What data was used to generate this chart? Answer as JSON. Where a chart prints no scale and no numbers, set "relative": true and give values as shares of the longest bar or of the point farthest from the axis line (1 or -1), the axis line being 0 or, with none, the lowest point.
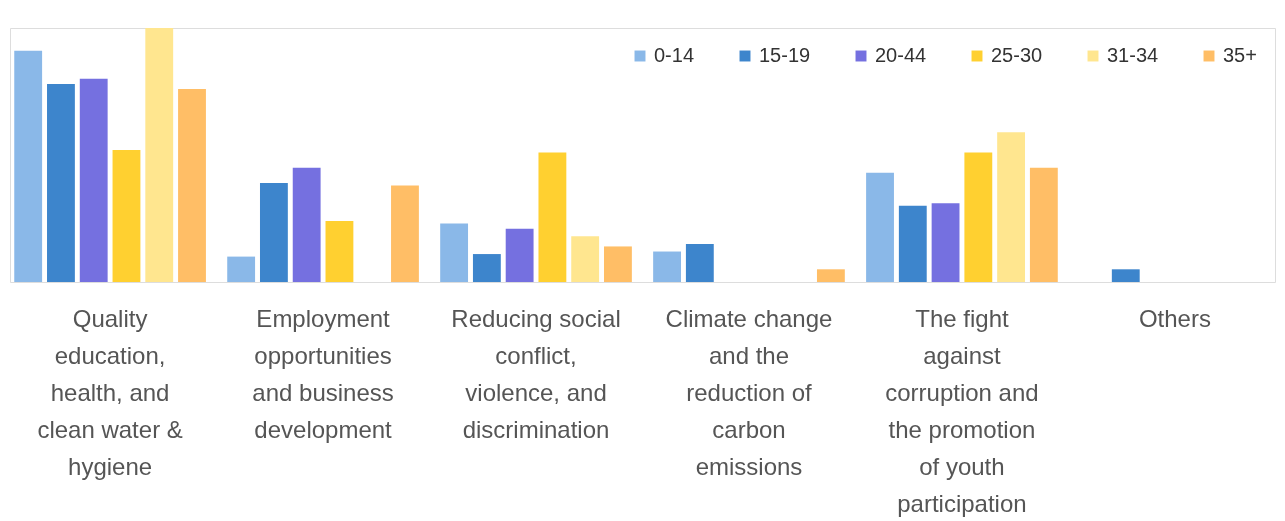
{
  "chart_data": {
    "type": "bar",
    "relative": true,
    "legend": "top right",
    "categories": [
      "Quality education, health, and clean water & hygiene",
      "Employment opportunities and business development",
      "Reducing social conflict, violence, and discrimination",
      "Climate change and the reduction of carbon emissions",
      "The fight against corruption and the promotion of youth participation",
      "Others"
    ],
    "series": [
      {
        "name": "0-14",
        "color": "#8ab8e8",
        "values": [
          0.91,
          0.1,
          0.23,
          0.12,
          0.43,
          null
        ]
      },
      {
        "name": "15-19",
        "color": "#3d85cc",
        "values": [
          0.78,
          0.39,
          0.11,
          0.15,
          0.3,
          0.05
        ]
      },
      {
        "name": "20-44",
        "color": "#7570e0",
        "values": [
          0.8,
          0.45,
          0.21,
          null,
          0.31,
          null
        ]
      },
      {
        "name": "25-30",
        "color": "#ffd030",
        "values": [
          0.52,
          0.24,
          0.51,
          null,
          0.51,
          null
        ]
      },
      {
        "name": "31-34",
        "color": "#ffe68f",
        "values": [
          1.0,
          null,
          0.18,
          null,
          0.59,
          null
        ]
      },
      {
        "name": "35+",
        "color": "#ffbe66",
        "values": [
          0.76,
          0.38,
          0.14,
          0.05,
          0.45,
          null
        ]
      }
    ]
  }
}
